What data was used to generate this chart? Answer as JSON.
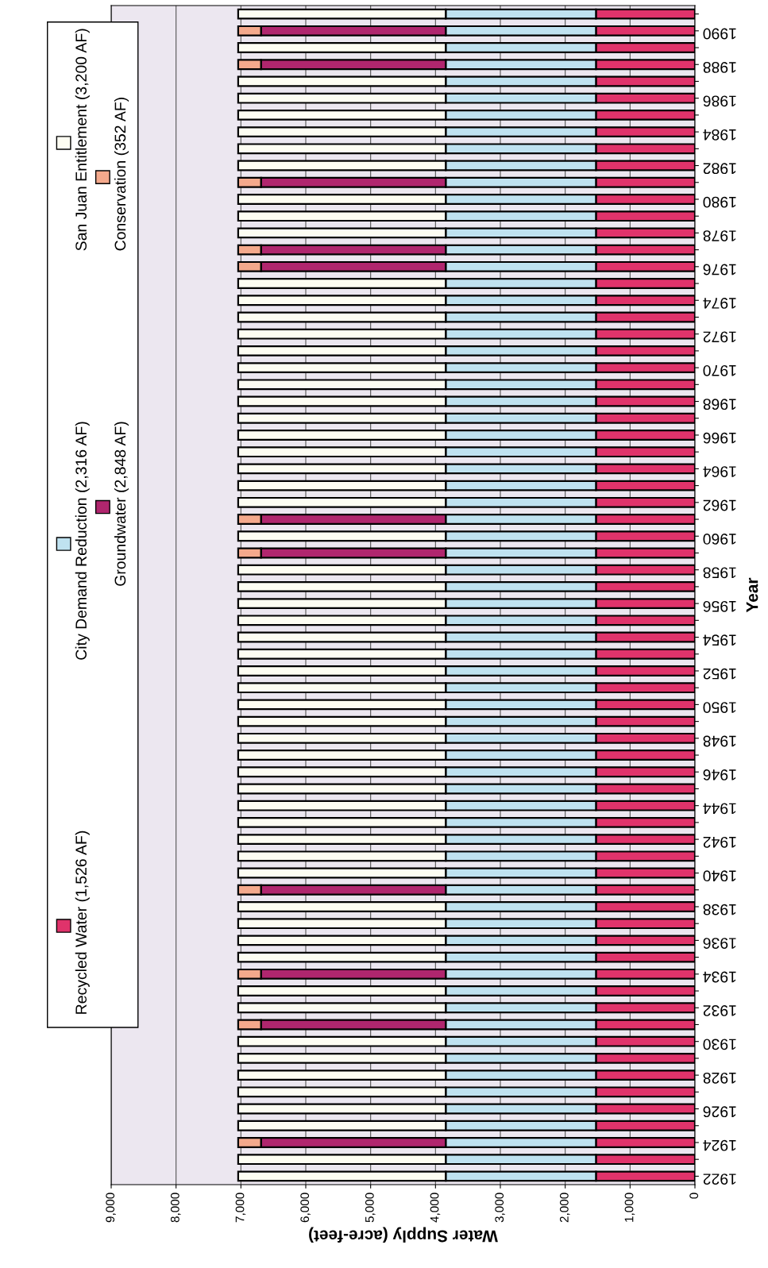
{
  "chart_data": {
    "type": "bar",
    "orientation": "horizontal",
    "stacked": true,
    "xlabel": "Water Supply (acre-feet)",
    "ylabel": "Year",
    "categories": [
      null,
      "1990",
      null,
      "1988",
      null,
      "1986",
      null,
      "1984",
      null,
      "1982",
      null,
      "1980",
      null,
      "1978",
      null,
      "1976",
      null,
      "1974",
      null,
      "1972",
      null,
      "1970",
      null,
      "1968",
      null,
      "1966",
      null,
      "1964",
      null,
      "1962",
      null,
      "1960",
      null,
      "1958",
      null,
      "1956",
      null,
      "1954",
      null,
      "1952",
      null,
      "1950",
      null,
      "1948",
      null,
      "1946",
      null,
      "1944",
      null,
      "1942",
      null,
      "1940",
      null,
      "1938",
      null,
      "1936",
      null,
      "1934",
      null,
      "1932",
      null,
      "1930",
      null,
      "1928",
      null,
      "1926",
      null,
      "1924",
      null,
      "1922"
    ],
    "series": [
      {
        "name": "Recycled Water (1,526 AF)",
        "color": "#e0336b",
        "values": [
          1526,
          1526,
          1526,
          1526,
          1526,
          1526,
          1526,
          1526,
          1526,
          1526,
          1526,
          1526,
          1526,
          1526,
          1526,
          1526,
          1526,
          1526,
          1526,
          1526,
          1526,
          1526,
          1526,
          1526,
          1526,
          1526,
          1526,
          1526,
          1526,
          1526,
          1526,
          1526,
          1526,
          1526,
          1526,
          1526,
          1526,
          1526,
          1526,
          1526,
          1526,
          1526,
          1526,
          1526,
          1526,
          1526,
          1526,
          1526,
          1526,
          1526,
          1526,
          1526,
          1526,
          1526,
          1526,
          1526,
          1526,
          1526,
          1526,
          1526,
          1526,
          1526,
          1526,
          1526,
          1526,
          1526,
          1526,
          1526,
          1526,
          1526
        ]
      },
      {
        "name": "City Demand Reduction (2,316 AF)",
        "color": "#bfe2f0",
        "values": [
          2316,
          2316,
          2316,
          2316,
          2316,
          2316,
          2316,
          2316,
          2316,
          2316,
          2316,
          2316,
          2316,
          2316,
          2316,
          2316,
          2316,
          2316,
          2316,
          2316,
          2316,
          2316,
          2316,
          2316,
          2316,
          2316,
          2316,
          2316,
          2316,
          2316,
          2316,
          2316,
          2316,
          2316,
          2316,
          2316,
          2316,
          2316,
          2316,
          2316,
          2316,
          2316,
          2316,
          2316,
          2316,
          2316,
          2316,
          2316,
          2316,
          2316,
          2316,
          2316,
          2316,
          2316,
          2316,
          2316,
          2316,
          2316,
          2316,
          2316,
          2316,
          2316,
          2316,
          2316,
          2316,
          2316,
          2316,
          2316,
          2316,
          2316
        ]
      },
      {
        "name": "Groundwater (2,848 AF)",
        "color": "#b0266e",
        "values": [
          null,
          2848,
          null,
          2848,
          null,
          null,
          null,
          null,
          null,
          null,
          2848,
          null,
          null,
          null,
          2848,
          2848,
          null,
          null,
          null,
          null,
          null,
          null,
          null,
          null,
          null,
          null,
          null,
          null,
          null,
          null,
          2848,
          null,
          2848,
          null,
          null,
          null,
          null,
          null,
          null,
          null,
          null,
          null,
          null,
          null,
          null,
          null,
          null,
          null,
          null,
          null,
          null,
          null,
          2848,
          null,
          null,
          null,
          null,
          2848,
          null,
          null,
          2848,
          null,
          null,
          null,
          null,
          null,
          null,
          2848,
          null,
          null
        ]
      },
      {
        "name": "Conservation (352 AF)",
        "color": "#f4a98c",
        "values": [
          null,
          352,
          null,
          352,
          null,
          null,
          null,
          null,
          null,
          null,
          352,
          null,
          null,
          null,
          352,
          352,
          null,
          null,
          null,
          null,
          null,
          null,
          null,
          null,
          null,
          null,
          null,
          null,
          null,
          null,
          352,
          null,
          352,
          null,
          null,
          null,
          null,
          null,
          null,
          null,
          null,
          null,
          null,
          null,
          null,
          null,
          null,
          null,
          null,
          null,
          null,
          null,
          352,
          null,
          null,
          null,
          null,
          352,
          null,
          null,
          352,
          null,
          null,
          null,
          null,
          null,
          null,
          352,
          null,
          null
        ]
      },
      {
        "name": "San Juan Entitlement (3,200 AF)",
        "color": "#fdfdf2",
        "values": [
          3200,
          null,
          3200,
          null,
          3200,
          3200,
          3200,
          3200,
          3200,
          3200,
          null,
          3200,
          3200,
          3200,
          null,
          null,
          3200,
          3200,
          3200,
          3200,
          3200,
          3200,
          3200,
          3200,
          3200,
          3200,
          3200,
          3200,
          3200,
          3200,
          null,
          3200,
          null,
          3200,
          3200,
          3200,
          3200,
          3200,
          3200,
          3200,
          3200,
          3200,
          3200,
          3200,
          3200,
          3200,
          3200,
          3200,
          3200,
          3200,
          3200,
          3200,
          null,
          3200,
          3200,
          3200,
          3200,
          null,
          3200,
          3200,
          null,
          3200,
          3200,
          3200,
          3200,
          3200,
          3200,
          null,
          3200,
          3200
        ]
      }
    ],
    "xlim": [
      9000,
      0
    ],
    "xticks": [
      {
        "value": 0,
        "label": "0"
      },
      {
        "value": 1000,
        "label": "1,000"
      },
      {
        "value": 2000,
        "label": "2,000"
      },
      {
        "value": 3000,
        "label": "3,000"
      },
      {
        "value": 4000,
        "label": "4,000"
      },
      {
        "value": 5000,
        "label": "5,000"
      },
      {
        "value": 6000,
        "label": "6,000"
      },
      {
        "value": 7000,
        "label": "7,000"
      },
      {
        "value": 8000,
        "label": "8,000"
      },
      {
        "value": 9000,
        "label": "9,000"
      }
    ],
    "grid": "x",
    "legend": "left"
  }
}
